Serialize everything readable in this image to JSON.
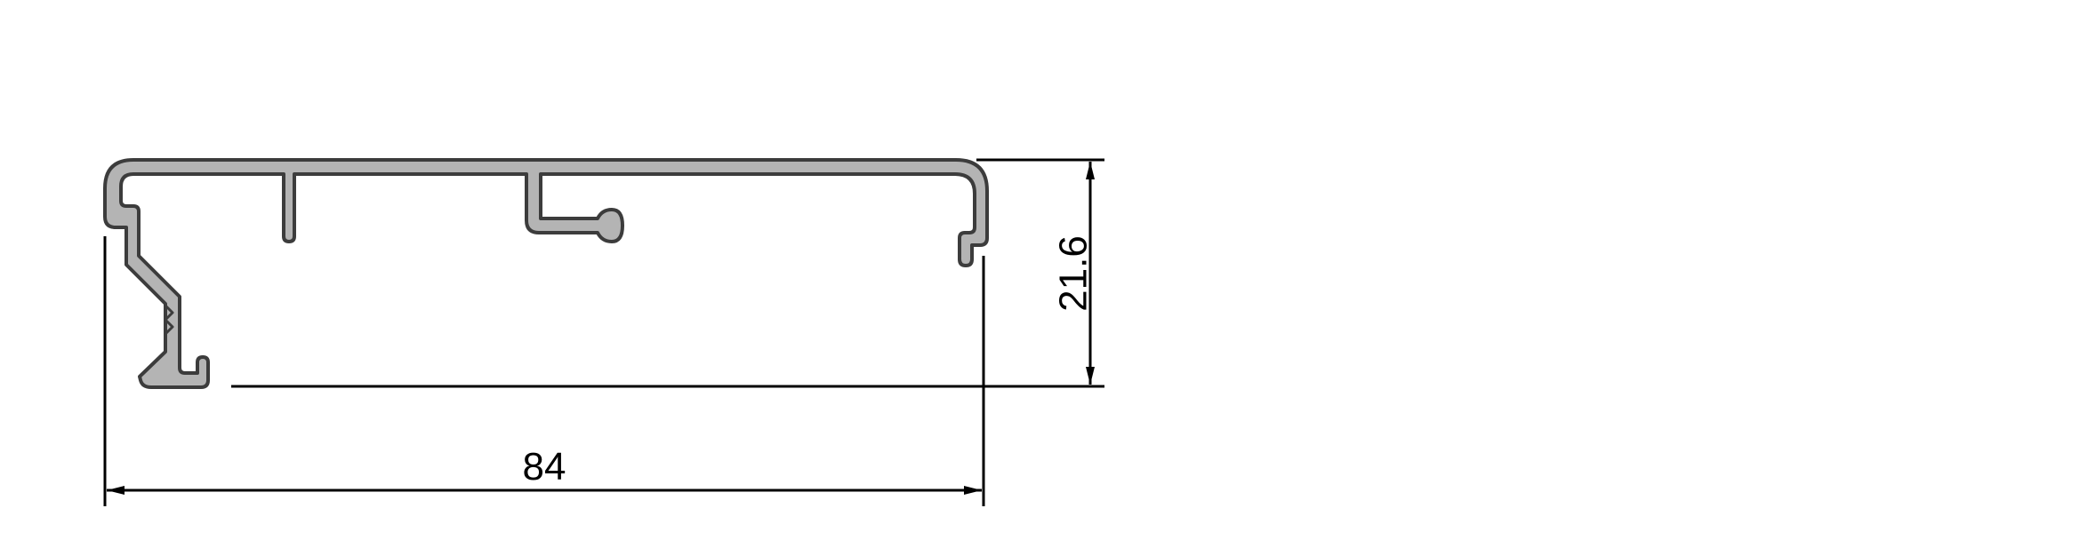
{
  "drawing": {
    "title": "",
    "colors": {
      "profile_fill": "#b4b4b4",
      "profile_outline": "#3c3c3c",
      "dimension_line": "#000000",
      "background": "#ffffff"
    }
  },
  "dimensions": {
    "width_value": "84",
    "height_value": "21.6"
  }
}
